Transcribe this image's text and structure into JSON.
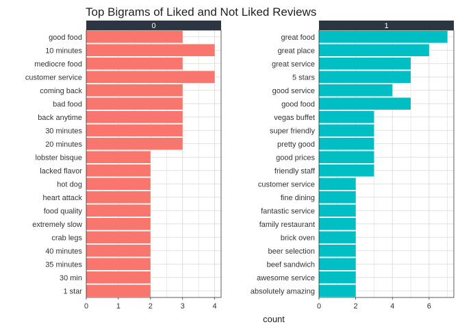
{
  "chart_data": {
    "type": "bar",
    "orientation": "horizontal",
    "title": "Top Bigrams of Liked and Not Liked Reviews",
    "xlabel": "count",
    "ylabel": "",
    "grid": true,
    "legend": "none",
    "facets": [
      {
        "label": "0",
        "color": "#F8766D",
        "xlim": [
          0,
          4.2
        ],
        "ticks": [
          0,
          1,
          2,
          3,
          4
        ],
        "categories": [
          "good food",
          "10 minutes",
          "mediocre food",
          "customer service",
          "coming back",
          "bad food",
          "back anytime",
          "30 minutes",
          "20 minutes",
          "lobster bisque",
          "lacked flavor",
          "hot dog",
          "heart attack",
          "food quality",
          "extremely slow",
          "crab legs",
          "40 minutes",
          "35 minutes",
          "30 min",
          "1 star"
        ],
        "values": [
          3,
          4,
          3,
          4,
          3,
          3,
          3,
          3,
          3,
          2,
          2,
          2,
          2,
          2,
          2,
          2,
          2,
          2,
          2,
          2
        ]
      },
      {
        "label": "1",
        "color": "#00BFC4",
        "xlim": [
          0,
          7.35
        ],
        "ticks": [
          0,
          2,
          4,
          6
        ],
        "categories": [
          "great food",
          "great place",
          "great service",
          "5 stars",
          "good service",
          "good food",
          "vegas buffet",
          "super friendly",
          "pretty good",
          "good prices",
          "friendly staff",
          "customer service",
          "fine dining",
          "fantastic service",
          "family restaurant",
          "brick oven",
          "beer selection",
          "beef sandwich",
          "awesome service",
          "absolutely amazing"
        ],
        "values": [
          7,
          6,
          5,
          5,
          4,
          5,
          3,
          3,
          3,
          3,
          3,
          2,
          2,
          2,
          2,
          2,
          2,
          2,
          2,
          2
        ]
      }
    ]
  },
  "colors": {
    "strip": "#2B3642",
    "grid": "#D6D6D6",
    "panel_border": "#333333"
  }
}
